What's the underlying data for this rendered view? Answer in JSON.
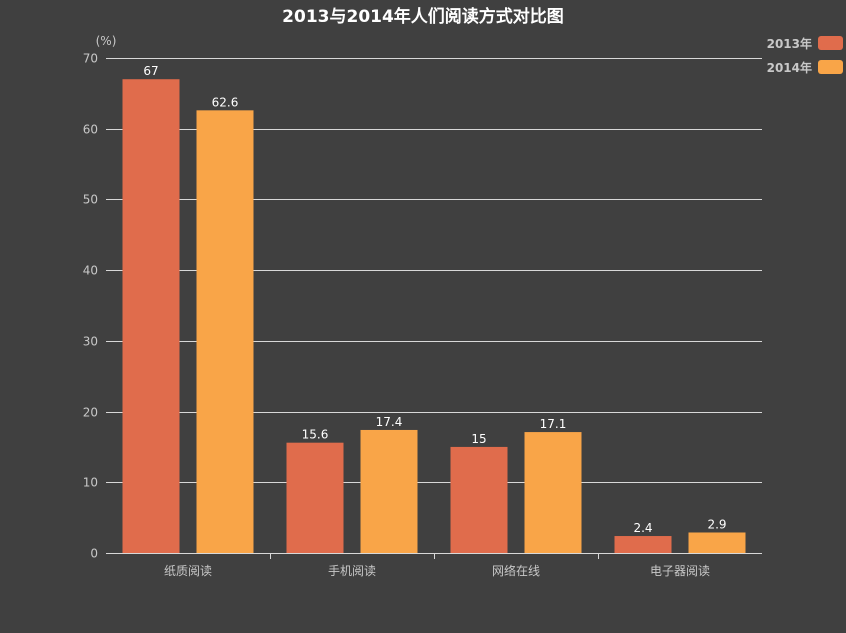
{
  "chart_data": {
    "type": "bar",
    "title": "2013与2014年人们阅读方式对比图",
    "ylabel": "(%)",
    "xlabel": "",
    "categories": [
      "纸质阅读",
      "手机阅读",
      "网络在线",
      "电子器阅读"
    ],
    "series": [
      {
        "name": "2013年",
        "values": [
          67,
          15.6,
          15,
          2.4
        ],
        "color": "#e06c4c"
      },
      {
        "name": "2014年",
        "values": [
          62.6,
          17.4,
          17.1,
          2.9
        ],
        "color": "#f9a548"
      }
    ],
    "ylim": [
      0,
      70
    ],
    "yticks": [
      0,
      10,
      20,
      30,
      40,
      50,
      60,
      70
    ],
    "grid": true,
    "legend_position": "top-right",
    "data_labels": true
  }
}
